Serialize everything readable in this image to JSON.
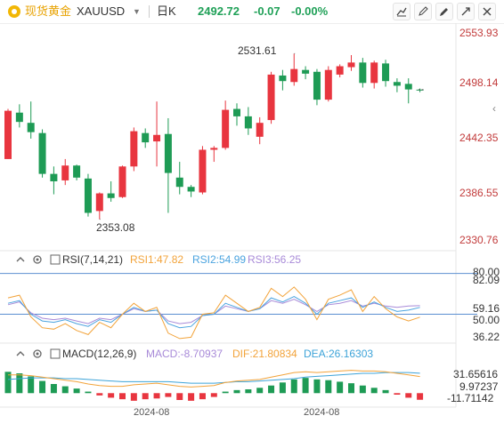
{
  "header": {
    "symbol_name": "现货黄金",
    "symbol_code": "XAUUSD",
    "period": "日K",
    "last_price": "2492.72",
    "change": "-0.07",
    "change_pct": "-0.00%",
    "tools": [
      "draw-line-icon",
      "pen-icon",
      "pencil-settings-icon",
      "expand-icon",
      "close-icon"
    ]
  },
  "colors": {
    "up": "#e8353f",
    "down": "#1e9b55",
    "rsi1": "#f2a33a",
    "rsi2": "#4aa3df",
    "rsi3": "#a88ad8",
    "dif": "#f2a33a",
    "dea": "#3da3d8",
    "price_axis": "#c23b3b"
  },
  "price_axis": {
    "labels": [
      "2553.93",
      "2498.14",
      "2442.35",
      "2386.55",
      "2330.76"
    ]
  },
  "annotations": {
    "high": "2531.61",
    "low": "2353.08"
  },
  "rsi_panel": {
    "title": "RSI(7,14,21)",
    "rsi1_label": "RSI1:47.82",
    "rsi2_label": "RSI2:54.99",
    "rsi3_label": "RSI3:56.25",
    "axis_labels": [
      "80.00",
      "82.09",
      "59.16",
      "50.00",
      "36.22"
    ]
  },
  "macd_panel": {
    "title": "MACD(12,26,9)",
    "macd_label": "MACD:-8.70937",
    "dif_label": "DIF:21.80834",
    "dea_label": "DEA:26.16303",
    "axis_labels": [
      "31.65616",
      "9.97237",
      "-11.71142"
    ]
  },
  "time_axis": [
    "2024-08",
    "2024-08"
  ],
  "chart_data": {
    "type": "candlestick",
    "symbol": "XAUUSD",
    "ylim": [
      2330.76,
      2553.93
    ],
    "candles": [
      {
        "o": 2418,
        "h": 2472,
        "l": 2418,
        "c": 2470
      },
      {
        "o": 2468,
        "h": 2477,
        "l": 2452,
        "c": 2458
      },
      {
        "o": 2457,
        "h": 2480,
        "l": 2440,
        "c": 2447
      },
      {
        "o": 2446,
        "h": 2450,
        "l": 2398,
        "c": 2402
      },
      {
        "o": 2402,
        "h": 2410,
        "l": 2380,
        "c": 2394
      },
      {
        "o": 2395,
        "h": 2418,
        "l": 2390,
        "c": 2411
      },
      {
        "o": 2411,
        "h": 2412,
        "l": 2395,
        "c": 2398
      },
      {
        "o": 2397,
        "h": 2402,
        "l": 2356,
        "c": 2360
      },
      {
        "o": 2362,
        "h": 2382,
        "l": 2353,
        "c": 2381
      },
      {
        "o": 2381,
        "h": 2394,
        "l": 2372,
        "c": 2376
      },
      {
        "o": 2377,
        "h": 2411,
        "l": 2376,
        "c": 2410
      },
      {
        "o": 2410,
        "h": 2452,
        "l": 2405,
        "c": 2448
      },
      {
        "o": 2446,
        "h": 2451,
        "l": 2430,
        "c": 2436
      },
      {
        "o": 2437,
        "h": 2480,
        "l": 2410,
        "c": 2444
      },
      {
        "o": 2445,
        "h": 2462,
        "l": 2360,
        "c": 2403
      },
      {
        "o": 2398,
        "h": 2415,
        "l": 2380,
        "c": 2388
      },
      {
        "o": 2388,
        "h": 2390,
        "l": 2377,
        "c": 2383
      },
      {
        "o": 2382,
        "h": 2432,
        "l": 2380,
        "c": 2428
      },
      {
        "o": 2428,
        "h": 2432,
        "l": 2415,
        "c": 2430
      },
      {
        "o": 2430,
        "h": 2481,
        "l": 2428,
        "c": 2471
      },
      {
        "o": 2472,
        "h": 2478,
        "l": 2454,
        "c": 2464
      },
      {
        "o": 2464,
        "h": 2474,
        "l": 2444,
        "c": 2451
      },
      {
        "o": 2442,
        "h": 2463,
        "l": 2434,
        "c": 2457
      },
      {
        "o": 2460,
        "h": 2512,
        "l": 2456,
        "c": 2509
      },
      {
        "o": 2508,
        "h": 2514,
        "l": 2492,
        "c": 2502
      },
      {
        "o": 2501,
        "h": 2531.61,
        "l": 2497,
        "c": 2515
      },
      {
        "o": 2514,
        "h": 2518,
        "l": 2504,
        "c": 2510
      },
      {
        "o": 2512,
        "h": 2515,
        "l": 2476,
        "c": 2482
      },
      {
        "o": 2482,
        "h": 2518,
        "l": 2480,
        "c": 2514
      },
      {
        "o": 2509,
        "h": 2520,
        "l": 2506,
        "c": 2518
      },
      {
        "o": 2517,
        "h": 2530,
        "l": 2513,
        "c": 2522
      },
      {
        "o": 2522,
        "h": 2527,
        "l": 2495,
        "c": 2500
      },
      {
        "o": 2500,
        "h": 2524,
        "l": 2494,
        "c": 2522
      },
      {
        "o": 2521,
        "h": 2525,
        "l": 2496,
        "c": 2502
      },
      {
        "o": 2501,
        "h": 2505,
        "l": 2490,
        "c": 2497
      },
      {
        "o": 2499,
        "h": 2505,
        "l": 2478,
        "c": 2493
      },
      {
        "o": 2492.79,
        "h": 2494,
        "l": 2490,
        "c": 2492.72
      }
    ],
    "rsi_ylim": [
      30,
      85
    ],
    "rsi1": [
      62,
      64,
      48,
      40,
      39,
      43,
      38,
      35,
      44,
      40,
      50,
      58,
      52,
      55,
      36,
      32,
      33,
      50,
      51,
      64,
      58,
      52,
      55,
      69,
      63,
      70,
      61,
      46,
      61,
      64,
      68,
      52,
      63,
      54,
      48,
      45,
      47.82
    ],
    "rsi2": [
      58,
      60,
      50,
      45,
      44,
      46,
      43,
      41,
      46,
      44,
      50,
      55,
      52,
      53,
      43,
      40,
      41,
      49,
      50,
      58,
      55,
      52,
      54,
      62,
      59,
      63,
      58,
      50,
      58,
      60,
      62,
      55,
      59,
      55,
      52,
      53,
      54.99
    ],
    "rsi3": [
      57,
      59,
      51,
      47,
      46,
      47,
      45,
      43,
      47,
      46,
      50,
      54,
      52,
      53,
      45,
      43,
      44,
      49,
      50,
      56,
      54,
      52,
      54,
      60,
      58,
      61,
      57,
      52,
      57,
      58,
      60,
      56,
      58,
      56,
      55,
      56,
      56.25
    ],
    "rsi_ref_lines": [
      80,
      50
    ],
    "macd_ylim": [
      -16,
      40
    ],
    "macd_hist": [
      28,
      26,
      22,
      16,
      12,
      9,
      6,
      2,
      -3,
      -6,
      -8,
      -10,
      -8,
      -7,
      -5,
      -9,
      -10,
      -8,
      -5,
      2,
      4,
      5,
      7,
      10,
      14,
      18,
      20,
      18,
      17,
      15,
      13,
      10,
      7,
      4,
      -2,
      -6,
      -8.70937
    ],
    "dif": [
      24,
      24,
      23,
      21,
      19,
      17,
      15,
      12,
      10,
      9,
      9,
      11,
      12,
      13,
      11,
      9,
      8,
      9,
      10,
      14,
      16,
      17,
      18,
      21,
      24,
      27,
      28,
      27,
      28,
      29,
      30,
      29,
      29,
      28,
      26,
      24,
      21.80834
    ],
    "dea": [
      18,
      19,
      20,
      20,
      20,
      19,
      19,
      18,
      17,
      16,
      15,
      15,
      15,
      15,
      15,
      14,
      13,
      13,
      13,
      14,
      15,
      15,
      16,
      17,
      18,
      19,
      21,
      22,
      23,
      24,
      25,
      26,
      26,
      27,
      27,
      27,
      26.16303
    ]
  }
}
